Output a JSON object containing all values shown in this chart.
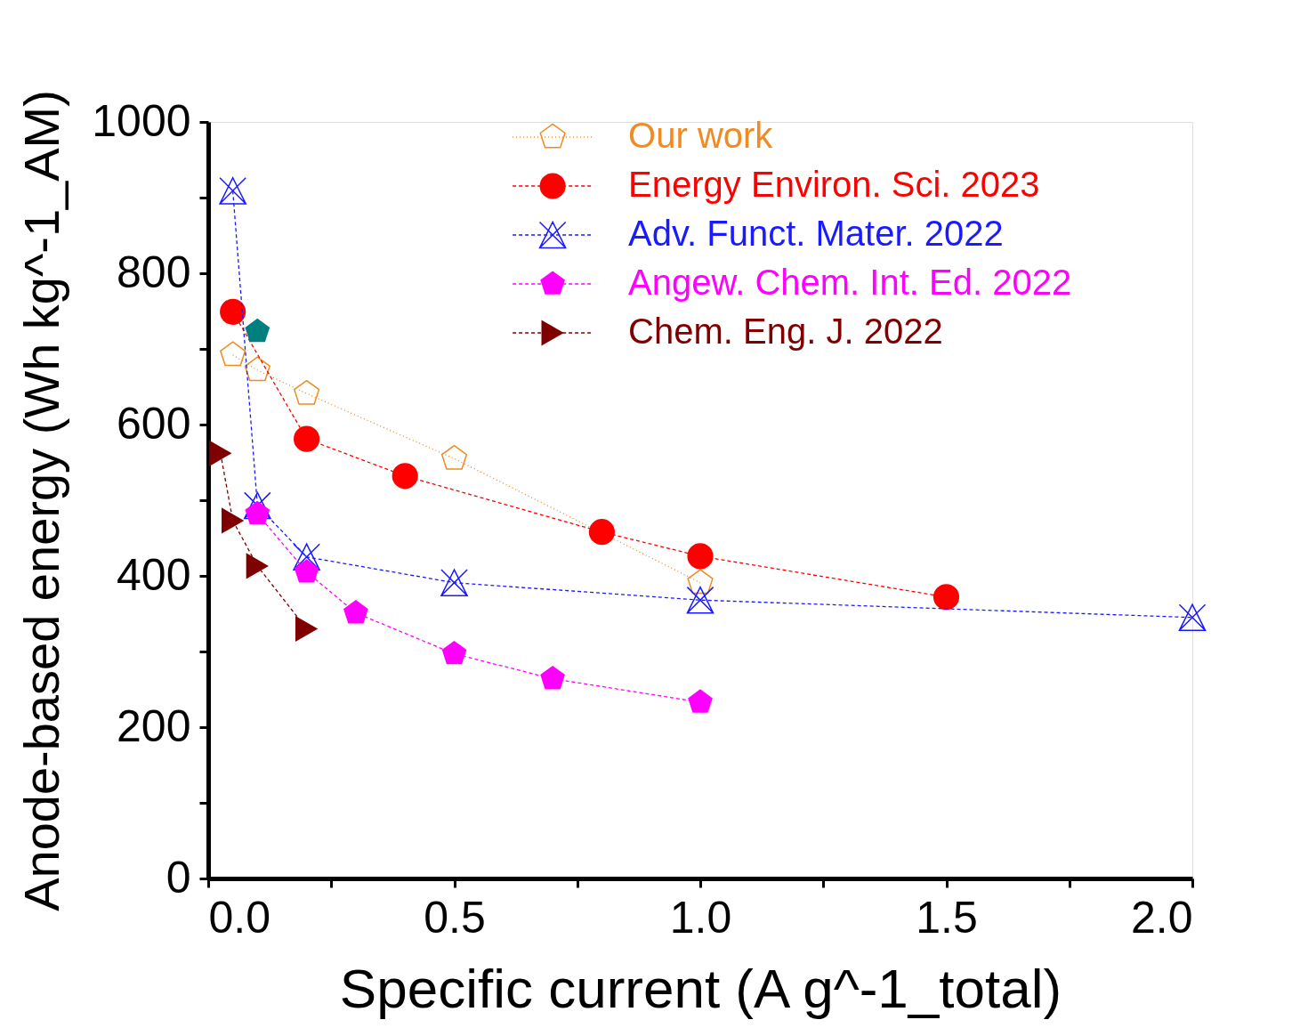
{
  "chart_data": {
    "type": "scatter",
    "xlabel": "Specific current (A g^-1_total)",
    "ylabel": "Anode-based energy (Wh kg^-1_AM)",
    "xlim": [
      0,
      2
    ],
    "ylim": [
      0,
      1000
    ],
    "xticks": [
      {
        "value": 0,
        "label": "0.0"
      },
      {
        "value": 0.25,
        "label": null
      },
      {
        "value": 0.5,
        "label": "0.5"
      },
      {
        "value": 0.75,
        "label": null
      },
      {
        "value": 1,
        "label": "1.0"
      },
      {
        "value": 1.25,
        "label": null
      },
      {
        "value": 1.5,
        "label": "1.5"
      },
      {
        "value": 1.75,
        "label": null
      },
      {
        "value": 2,
        "label": "2.0"
      }
    ],
    "yticks": [
      0,
      {
        "value": 100,
        "label": null
      },
      200,
      {
        "value": 300,
        "label": null
      },
      400,
      {
        "value": 500,
        "label": null
      },
      600,
      {
        "value": 700,
        "label": null
      },
      800,
      {
        "value": 900,
        "label": null
      },
      1000
    ],
    "grid": false,
    "legend": "top right",
    "series": [
      {
        "name": "Our work",
        "type": "line",
        "color": "#f08a24",
        "marker": "star",
        "line_style": "dotted",
        "x": [
          0.05,
          0.1,
          0.2,
          0.5,
          1.0
        ],
        "values": [
          692,
          672,
          641,
          555,
          391
        ]
      },
      {
        "name": "Energy Environ. Sci. 2023",
        "color": "#ff0000",
        "type": "line",
        "marker": "circle",
        "line_style": "dashed",
        "x": [
          0.05,
          0.2,
          0.4,
          0.8,
          1.0,
          1.5
        ],
        "values": [
          749,
          581,
          532,
          458,
          426,
          372
        ]
      },
      {
        "name": "Adv. Funct. Mater. 2022",
        "color": "#1a1aff",
        "type": "line",
        "marker": "cross",
        "line_style": "dashed",
        "x": [
          0.05,
          0.1,
          0.2,
          0.5,
          1.0,
          2.0
        ],
        "values": [
          909,
          493,
          425,
          391,
          368,
          345
        ]
      },
      {
        "name": "Angew. Chem. Int. Ed. 2022",
        "type": "line",
        "color": "#ff00ff",
        "marker": "star",
        "line_style": "dashed",
        "x": [
          0.1,
          0.2,
          0.3,
          0.5,
          0.7,
          1.0
        ],
        "values": [
          482,
          405,
          351,
          297,
          264,
          233
        ]
      },
      {
        "name": "Chem. Eng. J. 2022",
        "color": "#7f0000",
        "type": "line",
        "marker": "triangle",
        "line_style": "dashed",
        "x": [
          0.025,
          0.05,
          0.1,
          0.2
        ],
        "values": [
          562,
          473,
          413,
          330
        ]
      },
      {
        "color": "#007f7f",
        "marker": "star",
        "x": [
          0.1
        ],
        "values": [
          723
        ]
      }
    ]
  }
}
